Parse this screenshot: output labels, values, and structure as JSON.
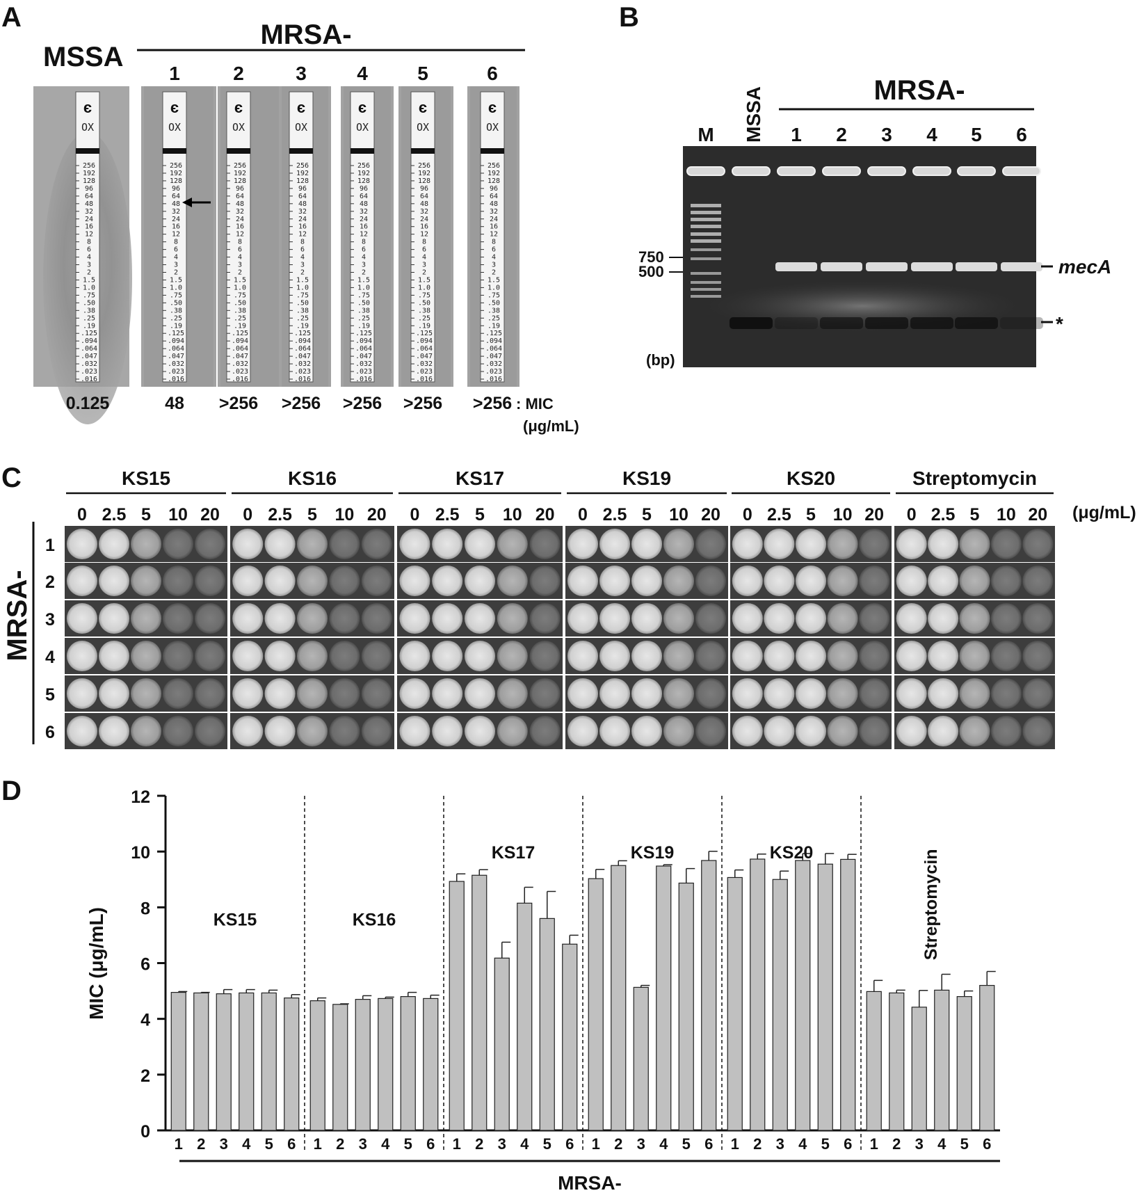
{
  "panel_a": {
    "panel_letter": "A",
    "mssa_label": "MSSA",
    "mrsa_label": "MRSA-",
    "strain_numbers": [
      "1",
      "2",
      "3",
      "4",
      "5",
      "6"
    ],
    "strip_logo": "є",
    "strip_drug": "OX",
    "strip_scale": [
      "256",
      "192",
      "128",
      "96",
      "64",
      "48",
      "32",
      "24",
      "16",
      "12",
      "8",
      "6",
      "4",
      "3",
      "2",
      "1.5",
      "1.0",
      ".75",
      ".50",
      ".38",
      ".25",
      ".19",
      ".125",
      ".094",
      ".064",
      ".047",
      ".032",
      ".023",
      ".016"
    ],
    "mic_values": [
      "0.125",
      "48",
      ">256",
      ">256",
      ">256",
      ">256",
      ">256"
    ],
    "mic_label_1": ": MIC",
    "mic_label_2": "(μg/mL)"
  },
  "panel_b": {
    "panel_letter": "B",
    "lanes": [
      "M",
      "MSSA",
      "1",
      "2",
      "3",
      "4",
      "5",
      "6"
    ],
    "mrsa_label": "MRSA-",
    "size_750": "750",
    "size_500": "500",
    "bp_label": "(bp)",
    "band_mecA": "mecA",
    "band_star": "*"
  },
  "panel_c": {
    "panel_letter": "C",
    "compounds": [
      "KS15",
      "KS16",
      "KS17",
      "KS19",
      "KS20",
      "Streptomycin"
    ],
    "concentrations": [
      "0",
      "2.5",
      "5",
      "10",
      "20"
    ],
    "unit": "(μg/mL)",
    "row_axis_label": "MRSA-",
    "rows": [
      "1",
      "2",
      "3",
      "4",
      "5",
      "6"
    ]
  },
  "chart_data": {
    "type": "bar",
    "panel_letter": "D",
    "ylabel": "MIC (μg/mL)",
    "xlabel": "MRSA-",
    "ylim": [
      0,
      12
    ],
    "yticks": [
      0,
      2,
      4,
      6,
      8,
      10,
      12
    ],
    "bar_color": "#c0c0c0",
    "groups": [
      {
        "name": "KS15",
        "categories": [
          "1",
          "2",
          "3",
          "4",
          "5",
          "6"
        ],
        "values": [
          4.95,
          4.93,
          4.9,
          4.93,
          4.93,
          4.75
        ],
        "errors": [
          0.03,
          0.02,
          0.15,
          0.12,
          0.1,
          0.12
        ]
      },
      {
        "name": "KS16",
        "categories": [
          "1",
          "2",
          "3",
          "4",
          "5",
          "6"
        ],
        "values": [
          4.65,
          4.52,
          4.7,
          4.73,
          4.8,
          4.73
        ],
        "errors": [
          0.1,
          0.02,
          0.13,
          0.05,
          0.15,
          0.12
        ]
      },
      {
        "name": "KS17",
        "categories": [
          "1",
          "2",
          "3",
          "4",
          "5",
          "6"
        ],
        "values": [
          8.93,
          9.15,
          6.18,
          8.15,
          7.6,
          6.68
        ],
        "errors": [
          0.27,
          0.2,
          0.57,
          0.57,
          0.97,
          0.32
        ]
      },
      {
        "name": "KS19",
        "categories": [
          "1",
          "2",
          "3",
          "4",
          "5",
          "6"
        ],
        "values": [
          9.03,
          9.5,
          5.13,
          9.48,
          8.87,
          9.68
        ],
        "errors": [
          0.33,
          0.17,
          0.07,
          0.05,
          0.52,
          0.33
        ]
      },
      {
        "name": "KS20",
        "categories": [
          "1",
          "2",
          "3",
          "4",
          "5",
          "6"
        ],
        "values": [
          9.07,
          9.73,
          9.0,
          9.68,
          9.55,
          9.72
        ],
        "errors": [
          0.27,
          0.18,
          0.3,
          0.25,
          0.38,
          0.18
        ]
      },
      {
        "name": "Streptomycin",
        "categories": [
          "1",
          "2",
          "3",
          "4",
          "5",
          "6"
        ],
        "values": [
          4.98,
          4.93,
          4.42,
          5.03,
          4.8,
          5.2
        ],
        "errors": [
          0.4,
          0.1,
          0.6,
          0.57,
          0.2,
          0.5
        ]
      }
    ]
  }
}
